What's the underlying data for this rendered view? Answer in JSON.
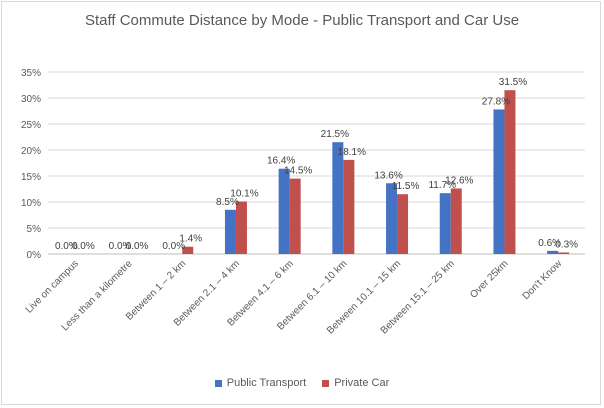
{
  "chart_data": {
    "type": "bar",
    "title": "Staff Commute Distance by Mode - Public Transport and Car Use",
    "xlabel": "",
    "ylabel": "",
    "ylim": [
      0,
      35
    ],
    "yticks": [
      "0%",
      "5%",
      "10%",
      "15%",
      "20%",
      "25%",
      "30%",
      "35%"
    ],
    "grid": true,
    "legend_position": "bottom",
    "categories": [
      "Live on campus",
      "Less than a kilometre",
      "Between 1 – 2 km",
      "Between 2.1 – 4 km",
      "Between 4.1 – 6 km",
      "Between 6.1 – 10 km",
      "Between 10.1 – 15 km",
      "Between 15.1 – 25 km",
      "Over 25km",
      "Don't Know"
    ],
    "series": [
      {
        "name": "Public Transport",
        "color": "#4472c4",
        "values": [
          0.0,
          0.0,
          0.0,
          8.5,
          16.4,
          21.5,
          13.6,
          11.7,
          27.8,
          0.6
        ],
        "labels": [
          "0.0%",
          "0.0%",
          "0.0%",
          "8.5%",
          "16.4%",
          "21.5%",
          "13.6%",
          "11.7%",
          "27.8%",
          "0.6%"
        ]
      },
      {
        "name": "Private Car",
        "color": "#c0504d",
        "values": [
          0.0,
          0.0,
          1.4,
          10.1,
          14.5,
          18.1,
          11.5,
          12.6,
          31.5,
          0.3
        ],
        "labels": [
          "0.0%",
          "0.0%",
          "1.4%",
          "10.1%",
          "14.5%",
          "18.1%",
          "11.5%",
          "12.6%",
          "31.5%",
          "0.3%"
        ]
      }
    ]
  }
}
